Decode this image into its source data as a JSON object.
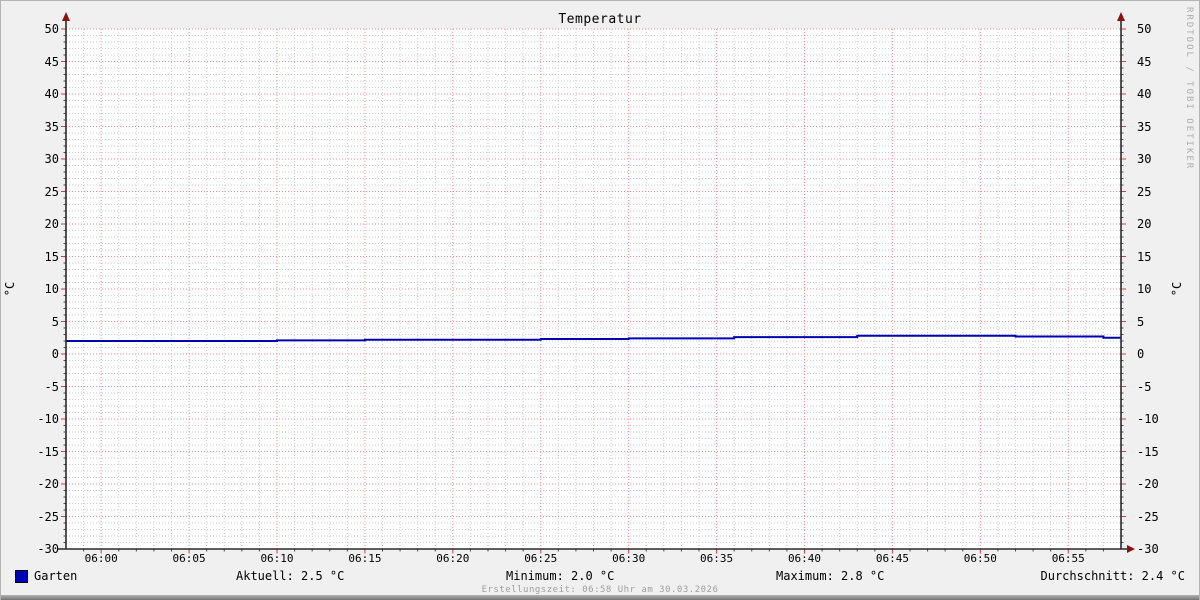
{
  "title": "Temperatur",
  "watermark": "RRDTOOL / TOBI OETIKER",
  "footer": "Erstellungszeit: 06:58 Uhr am 30.03.2026",
  "legend": {
    "series": "Garten",
    "aktuell": "Aktuell: 2.5 °C",
    "minimum": "Minimum: 2.0 °C",
    "maximum": "Maximum: 2.8 °C",
    "durchschnitt": "Durchschnitt: 2.4 °C"
  },
  "chart_data": {
    "type": "line",
    "title": "Temperatur",
    "ylabel": "°C",
    "ylabel_right": "°C",
    "ylim": [
      -30,
      50
    ],
    "y_major_step": 5,
    "y_minor_step": 1,
    "x_start": "05:58",
    "x_end": "06:58",
    "x_minutes_total": 60,
    "x_minor_step_minutes": 1,
    "x_ticks": [
      [
        2,
        "06:00"
      ],
      [
        7,
        "06:05"
      ],
      [
        12,
        "06:10"
      ],
      [
        17,
        "06:15"
      ],
      [
        22,
        "06:20"
      ],
      [
        27,
        "06:25"
      ],
      [
        32,
        "06:30"
      ],
      [
        37,
        "06:35"
      ],
      [
        42,
        "06:40"
      ],
      [
        47,
        "06:45"
      ],
      [
        52,
        "06:50"
      ],
      [
        57,
        "06:55"
      ]
    ],
    "series": [
      {
        "name": "Garten",
        "color": "#0000b4",
        "unit": "°C",
        "draw_style": "step",
        "step_points": [
          [
            0,
            2.0
          ],
          [
            12,
            2.1
          ],
          [
            17,
            2.2
          ],
          [
            27,
            2.3
          ],
          [
            32,
            2.4
          ],
          [
            38,
            2.6
          ],
          [
            45,
            2.8
          ],
          [
            54,
            2.7
          ],
          [
            59,
            2.5
          ]
        ],
        "stats": {
          "aktuell": 2.5,
          "minimum": 2.0,
          "maximum": 2.8,
          "durchschnitt": 2.4
        }
      }
    ],
    "grid": {
      "major": true,
      "minor": true
    },
    "legend_position": "bottom",
    "colors": {
      "canvas": "#ffffff",
      "background": "#f0f0f0",
      "major_grid": "#f09090",
      "minor_grid": "#cdcdd2",
      "axis": "#2b2b2d",
      "arrow": "#8a1212",
      "tick_minor": "#4a4a4a",
      "tick_major": "#d04040"
    },
    "layout": {
      "x0": 65,
      "x1": 1120,
      "y_top": 28,
      "y_bottom": 548
    }
  }
}
